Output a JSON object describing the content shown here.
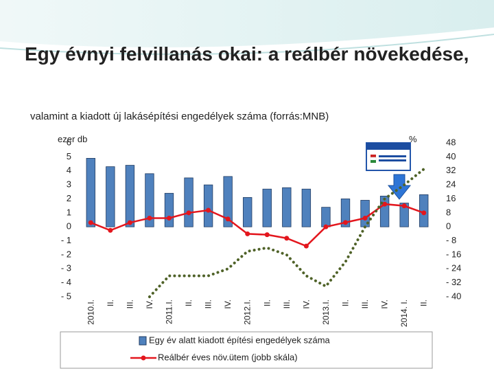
{
  "chart_data": {
    "type": "bar",
    "title": "Egy évnyi felvillanás okai: a reálbér növekedése,",
    "subtitle": "valamint a kiadott új lakásépítési engedélyek száma  (forrás:MNB)",
    "ylabel": "ezer db",
    "y2label": "%",
    "categories": [
      "2010.I.",
      "II.",
      "III.",
      "IV.",
      "2011.I.",
      "II.",
      "III.",
      "IV.",
      "2012.I.",
      "II.",
      "III.",
      "IV.",
      "2013.I.",
      "II.",
      "III.",
      "IV.",
      "2014. I.",
      "II."
    ],
    "ylim": [
      -5,
      6
    ],
    "yticks": [
      {
        "value": -5,
        "label": "- 5"
      },
      {
        "value": -4,
        "label": "- 4"
      },
      {
        "value": -3,
        "label": "- 3"
      },
      {
        "value": -2,
        "label": "- 2"
      },
      {
        "value": -1,
        "label": "- 1"
      },
      0,
      1,
      2,
      3,
      4,
      5,
      6
    ],
    "y2lim": [
      -40,
      48
    ],
    "y2ticks": [
      {
        "value": -40,
        "label": "- 40"
      },
      {
        "value": -32,
        "label": "- 32"
      },
      {
        "value": -24,
        "label": "- 24"
      },
      {
        "value": -16,
        "label": "- 16"
      },
      {
        "value": -8,
        "label": "- 8"
      },
      0,
      8,
      16,
      24,
      32,
      40,
      48
    ],
    "series": [
      {
        "name": "Egy év alatt kiadott építési engedélyek száma",
        "type": "bar",
        "axis": "y",
        "color": "#4f81bd",
        "values": [
          4.9,
          4.3,
          4.4,
          3.8,
          2.4,
          3.5,
          3.0,
          3.6,
          2.1,
          2.7,
          2.8,
          2.7,
          1.4,
          2.0,
          1.9,
          2.2,
          1.7,
          2.3
        ]
      },
      {
        "name": "Reálbér éves növ.ütem (jobb skála)",
        "type": "line",
        "axis": "y2",
        "color": "#e3161d",
        "markers": true,
        "values": [
          2.4,
          -2,
          2.4,
          5,
          5,
          8,
          9.5,
          4.5,
          -4,
          -4.5,
          -6.5,
          -11,
          0,
          2.5,
          5,
          13,
          12,
          8
        ]
      },
      {
        "type": "line",
        "axis": "y2",
        "color": "#4f6228",
        "dash": "dotted",
        "values": [
          null,
          null,
          null,
          -40,
          -28,
          -28,
          -28,
          -24,
          -14,
          -12,
          -16,
          -28,
          -34,
          -20,
          0,
          16,
          24,
          33
        ]
      }
    ]
  }
}
